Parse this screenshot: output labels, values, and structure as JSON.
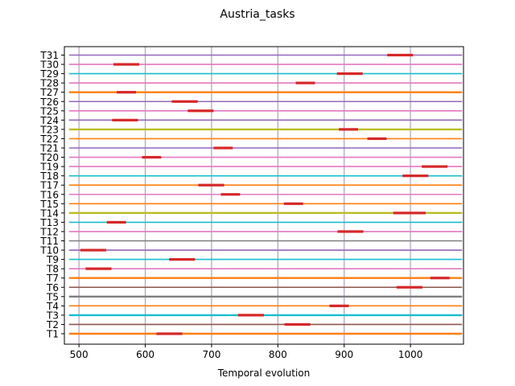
{
  "chart_data": {
    "type": "gantt",
    "title": "Austria_tasks",
    "xlabel": "Temporal evolution",
    "ylabel": "",
    "xlim": [
      478,
      1080
    ],
    "x_ticks": [
      500,
      600,
      700,
      800,
      900,
      1000
    ],
    "grid": "vertical",
    "timeline_start": 485,
    "timeline_end": 1078,
    "tasks": [
      {
        "name": "T1",
        "color": "#ff7f0e",
        "thick": true,
        "start": 617,
        "end": 656
      },
      {
        "name": "T2",
        "color": "#8c564b",
        "thick": false,
        "start": 810,
        "end": 849
      },
      {
        "name": "T3",
        "color": "#17becf",
        "thick": true,
        "start": 740,
        "end": 779
      },
      {
        "name": "T4",
        "color": "#ff7f0e",
        "thick": false,
        "start": 878,
        "end": 907
      },
      {
        "name": "T5",
        "color": "#7f7f7f",
        "thick": true,
        "start": null,
        "end": null
      },
      {
        "name": "T6",
        "color": "#8c564b",
        "thick": false,
        "start": 979,
        "end": 1018
      },
      {
        "name": "T7",
        "color": "#ff7f0e",
        "thick": true,
        "start": 1030,
        "end": 1059
      },
      {
        "name": "T8",
        "color": "#e377c2",
        "thick": false,
        "start": 510,
        "end": 549
      },
      {
        "name": "T9",
        "color": "#17becf",
        "thick": false,
        "start": 636,
        "end": 675
      },
      {
        "name": "T10",
        "color": "#9467bd",
        "thick": false,
        "start": 502,
        "end": 541
      },
      {
        "name": "T11",
        "color": "#7f7f7f",
        "thick": false,
        "start": null,
        "end": null
      },
      {
        "name": "T12",
        "color": "#e377c2",
        "thick": false,
        "start": 890,
        "end": 929
      },
      {
        "name": "T13",
        "color": "#17becf",
        "thick": false,
        "start": 542,
        "end": 571
      },
      {
        "name": "T14",
        "color": "#bcbd22",
        "thick": true,
        "start": 974,
        "end": 1023
      },
      {
        "name": "T15",
        "color": "#ff7f0e",
        "thick": false,
        "start": 809,
        "end": 838
      },
      {
        "name": "T16",
        "color": "#e377c2",
        "thick": false,
        "start": 714,
        "end": 743
      },
      {
        "name": "T17",
        "color": "#ff7f0e",
        "thick": false,
        "start": 680,
        "end": 719
      },
      {
        "name": "T18",
        "color": "#17becf",
        "thick": false,
        "start": 988,
        "end": 1027
      },
      {
        "name": "T19",
        "color": "#e377c2",
        "thick": false,
        "start": 1017,
        "end": 1056
      },
      {
        "name": "T20",
        "color": "#e377c2",
        "thick": false,
        "start": 595,
        "end": 624
      },
      {
        "name": "T21",
        "color": "#9467bd",
        "thick": false,
        "start": 703,
        "end": 732
      },
      {
        "name": "T22",
        "color": "#ff7f0e",
        "thick": false,
        "start": 935,
        "end": 964
      },
      {
        "name": "T23",
        "color": "#bcbd22",
        "thick": true,
        "start": 892,
        "end": 921
      },
      {
        "name": "T24",
        "color": "#9467bd",
        "thick": false,
        "start": 550,
        "end": 589
      },
      {
        "name": "T25",
        "color": "#e377c2",
        "thick": false,
        "start": 664,
        "end": 703
      },
      {
        "name": "T26",
        "color": "#9467bd",
        "thick": false,
        "start": 640,
        "end": 679
      },
      {
        "name": "T27",
        "color": "#ff7f0e",
        "thick": true,
        "start": 557,
        "end": 586
      },
      {
        "name": "T28",
        "color": "#e377c2",
        "thick": false,
        "start": 827,
        "end": 856
      },
      {
        "name": "T29",
        "color": "#17becf",
        "thick": false,
        "start": 889,
        "end": 928
      },
      {
        "name": "T30",
        "color": "#e377c2",
        "thick": false,
        "start": 552,
        "end": 591
      },
      {
        "name": "T31",
        "color": "#9467bd",
        "thick": false,
        "start": 965,
        "end": 1004
      }
    ],
    "bar_color": "#d62728",
    "grid_color": "#b0a0b8",
    "axis_color": "#000000"
  }
}
